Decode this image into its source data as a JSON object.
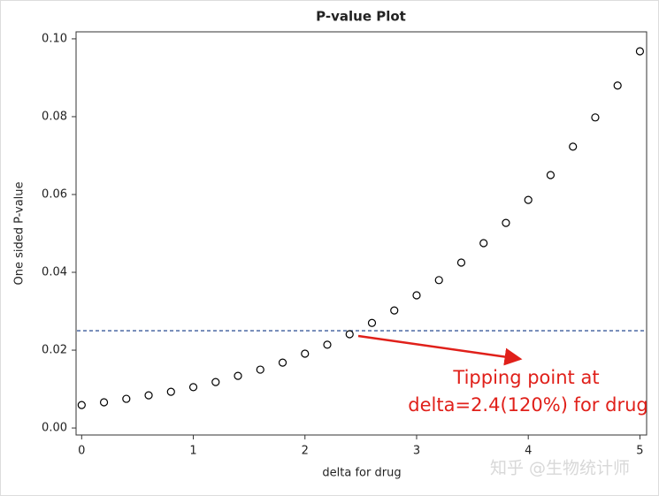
{
  "chart_data": {
    "type": "scatter",
    "title": "P-value Plot",
    "xlabel": "delta for drug",
    "ylabel": "One sided P-value",
    "x": [
      0,
      0.2,
      0.4,
      0.6,
      0.8,
      1.0,
      1.2,
      1.4,
      1.6,
      1.8,
      2.0,
      2.2,
      2.4,
      2.6,
      2.8,
      3.0,
      3.2,
      3.4,
      3.6,
      3.8,
      4.0,
      4.2,
      4.4,
      4.6,
      4.8,
      5.0
    ],
    "values": [
      0.0059,
      0.0066,
      0.0075,
      0.0084,
      0.0093,
      0.0105,
      0.0118,
      0.0134,
      0.015,
      0.0168,
      0.0191,
      0.0214,
      0.0241,
      0.027,
      0.0302,
      0.0341,
      0.038,
      0.0425,
      0.0475,
      0.0527,
      0.0586,
      0.065,
      0.0723,
      0.0798,
      0.088,
      0.0968
    ],
    "color": "#000000",
    "reference_line": 0.025,
    "reference_color": "#3a5a9a",
    "xlim": [
      -0.05,
      5.06
    ],
    "xticks": [
      0,
      1,
      2,
      3,
      4,
      5
    ],
    "ylim": [
      -0.0018,
      0.1018
    ],
    "yticks": [
      {
        "value": 0,
        "label": "0.00"
      },
      {
        "value": 0.02,
        "label": "0.02"
      },
      {
        "value": 0.04,
        "label": "0.04"
      },
      {
        "value": 0.06,
        "label": "0.06"
      },
      {
        "value": 0.08,
        "label": "0.08"
      },
      {
        "value": 0.1,
        "label": "0.10"
      }
    ],
    "annotation": [
      "Tipping point at",
      "delta=2.4(120%) for drug"
    ],
    "watermark": "知乎 @生物统计师"
  }
}
